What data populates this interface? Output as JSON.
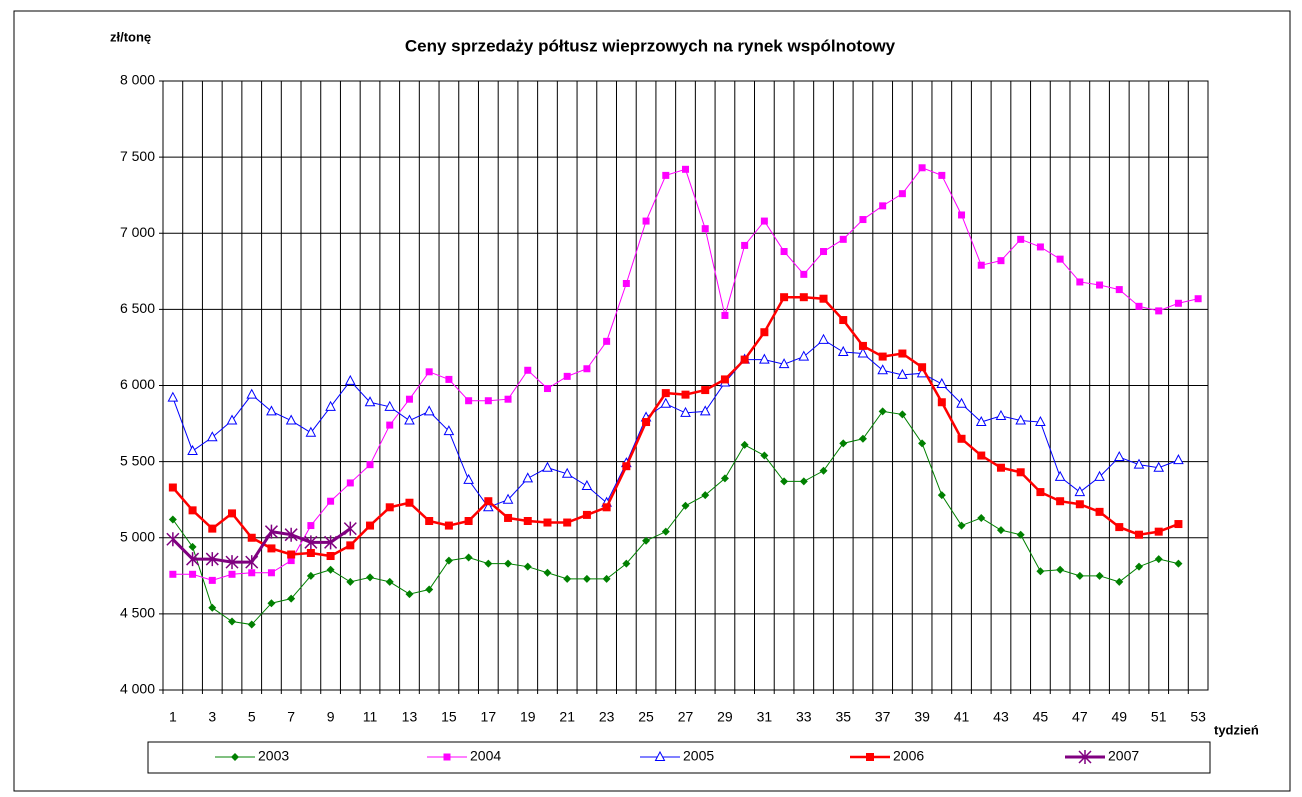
{
  "chart_data": {
    "type": "line",
    "title": "Ceny sprzedaży półtusz wieprzowych na rynek wspólnotowy",
    "y_label": "zł/tonę",
    "x_label": "tydzień",
    "categories": [
      "1",
      null,
      "3",
      null,
      "5",
      null,
      "7",
      null,
      "9",
      null,
      "11",
      null,
      "13",
      null,
      "15",
      null,
      "17",
      null,
      "19",
      null,
      "21",
      null,
      "23",
      null,
      "25",
      null,
      "27",
      null,
      "29",
      null,
      "31",
      null,
      "33",
      null,
      "35",
      null,
      "37",
      null,
      "39",
      null,
      "41",
      null,
      "43",
      null,
      "45",
      null,
      "47",
      null,
      "49",
      null,
      "51",
      null,
      "53"
    ],
    "ylim": [
      4000,
      8000
    ],
    "yticks": [
      {
        "value": 4000,
        "label": "4 000"
      },
      {
        "value": 4500,
        "label": "4 500"
      },
      {
        "value": 5000,
        "label": "5 000"
      },
      {
        "value": 5500,
        "label": "5 500"
      },
      {
        "value": 6000,
        "label": "6 000"
      },
      {
        "value": 6500,
        "label": "6 500"
      },
      {
        "value": 7000,
        "label": "7 000"
      },
      {
        "value": 7500,
        "label": "7 500"
      },
      {
        "value": 8000,
        "label": "8 000"
      }
    ],
    "grid": true,
    "legend": "bottom",
    "series": [
      {
        "name": "2003",
        "color": "#008000",
        "marker": "diamond",
        "values": [
          5120,
          4940,
          4540,
          4450,
          4430,
          4570,
          4600,
          4750,
          4790,
          4710,
          4740,
          4710,
          4630,
          4660,
          4850,
          4870,
          4830,
          4830,
          4810,
          4770,
          4730,
          4730,
          4730,
          4830,
          4980,
          5040,
          5210,
          5280,
          5390,
          5610,
          5540,
          5370,
          5370,
          5440,
          5620,
          5650,
          5830,
          5810,
          5620,
          5280,
          5080,
          5130,
          5050,
          5020,
          4780,
          4790,
          4750,
          4750,
          4710,
          4810,
          4860,
          4830,
          null
        ]
      },
      {
        "name": "2004",
        "color": "#ff00ff",
        "marker": "square",
        "values": [
          4760,
          4760,
          4720,
          4760,
          4770,
          4770,
          4850,
          5080,
          5240,
          5360,
          5480,
          5740,
          5910,
          6090,
          6040,
          5900,
          5900,
          5910,
          6100,
          5980,
          6060,
          6110,
          6290,
          6670,
          7080,
          7380,
          7420,
          7030,
          6460,
          6920,
          7080,
          6880,
          6730,
          6880,
          6960,
          7090,
          7180,
          7260,
          7430,
          7380,
          7120,
          6790,
          6820,
          6960,
          6910,
          6830,
          6680,
          6660,
          6630,
          6520,
          6490,
          6540,
          6570
        ]
      },
      {
        "name": "2005",
        "color": "#0000ff",
        "marker": "triangle",
        "values": [
          5920,
          5570,
          5660,
          5770,
          5940,
          5830,
          5770,
          5690,
          5860,
          6030,
          5890,
          5860,
          5770,
          5830,
          5700,
          5380,
          5200,
          5250,
          5390,
          5460,
          5420,
          5340,
          5230,
          5490,
          5790,
          5880,
          5820,
          5830,
          6020,
          6170,
          6170,
          6140,
          6190,
          6300,
          6220,
          6210,
          6100,
          6070,
          6080,
          6010,
          5880,
          5760,
          5800,
          5770,
          5760,
          5400,
          5300,
          5400,
          5530,
          5480,
          5460,
          5510,
          null
        ]
      },
      {
        "name": "2006",
        "color": "#ff0000",
        "marker": "square-big",
        "values": [
          5330,
          5180,
          5060,
          5160,
          5000,
          4930,
          4890,
          4900,
          4880,
          4950,
          5080,
          5200,
          5230,
          5110,
          5080,
          5110,
          5240,
          5130,
          5110,
          5100,
          5100,
          5150,
          5200,
          5470,
          5760,
          5950,
          5940,
          5970,
          6040,
          6170,
          6350,
          6580,
          6580,
          6570,
          6430,
          6260,
          6190,
          6210,
          6120,
          5890,
          5650,
          5540,
          5460,
          5430,
          5300,
          5240,
          5220,
          5170,
          5070,
          5020,
          5040,
          5090,
          null
        ]
      },
      {
        "name": "2007",
        "color": "#800080",
        "marker": "star",
        "values": [
          4990,
          4860,
          4860,
          4840,
          4840,
          5040,
          5020,
          4970,
          4970,
          5060,
          null,
          null,
          null,
          null,
          null,
          null,
          null,
          null,
          null,
          null,
          null,
          null,
          null,
          null,
          null,
          null,
          null,
          null,
          null,
          null,
          null,
          null,
          null,
          null,
          null,
          null,
          null,
          null,
          null,
          null,
          null,
          null,
          null,
          null,
          null,
          null,
          null,
          null,
          null,
          null,
          null,
          null,
          null
        ]
      }
    ]
  }
}
